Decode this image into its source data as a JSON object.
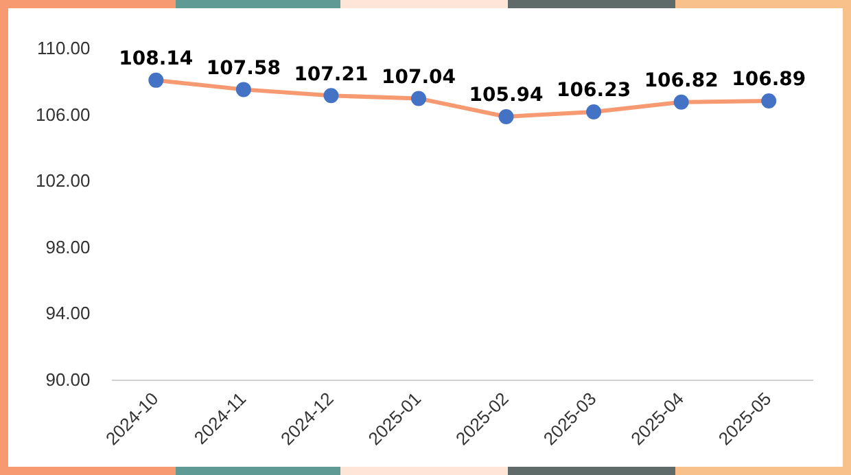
{
  "chart_data": {
    "type": "line",
    "categories": [
      "2024-10",
      "2024-11",
      "2024-12",
      "2025-01",
      "2025-02",
      "2025-03",
      "2025-04",
      "2025-05"
    ],
    "series": [
      {
        "color": "#f79a72",
        "values": [
          108.14,
          107.58,
          107.21,
          107.04,
          105.94,
          106.23,
          106.82,
          106.89
        ]
      }
    ],
    "ylim": [
      90,
      110
    ],
    "yticks": [
      {
        "value": 90,
        "label": "90.00"
      },
      {
        "value": 94,
        "label": "94.00"
      },
      {
        "value": 98,
        "label": "98.00"
      },
      {
        "value": 102,
        "label": "102.00"
      },
      {
        "value": 106,
        "label": "106.00"
      },
      {
        "value": 110,
        "label": "110.00"
      }
    ],
    "grid": false,
    "legend": false,
    "marker": "circle",
    "line_style": "solid",
    "data_labels": true
  }
}
